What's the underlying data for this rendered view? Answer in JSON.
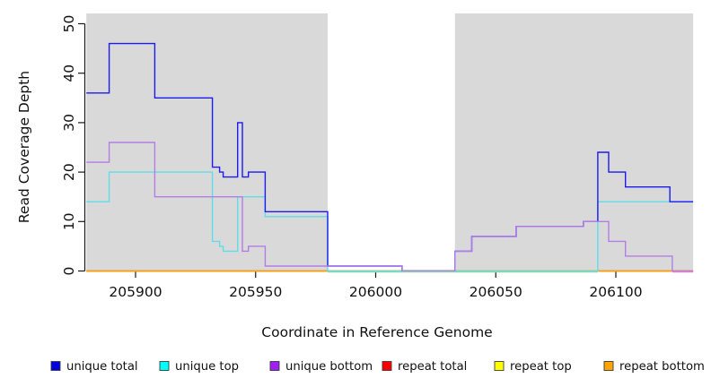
{
  "chart_data": {
    "type": "line",
    "subtype": "step-coverage-plot",
    "title": "",
    "xlabel": "Coordinate in Reference Genome",
    "ylabel": "Read Coverage Depth",
    "xlim": [
      205879.5,
      206132.2
    ],
    "ylim": [
      0,
      51
    ],
    "x_ticks": [
      205900,
      205950,
      206000,
      206050,
      206100
    ],
    "y_ticks": [
      0,
      10,
      20,
      30,
      40,
      50
    ],
    "grid": false,
    "legend_position": "bottom",
    "region_color": "#d9d9d9",
    "shaded_regions": [
      {
        "from": 205879.5,
        "to": 205980,
        "label": "shaded-region-left"
      },
      {
        "from": 206033,
        "to": 206132.2,
        "label": "shaded-region-right"
      }
    ],
    "x_end": 206132.2,
    "series": [
      {
        "name": "unique total",
        "line_color": "#1b1bf2",
        "legend_color": "#0000e0",
        "steps": [
          [
            205879.5,
            36
          ],
          [
            205889,
            46
          ],
          [
            205908,
            35
          ],
          [
            205932,
            21
          ],
          [
            205935,
            20
          ],
          [
            205936.5,
            19
          ],
          [
            205942.5,
            30
          ],
          [
            205944.5,
            19
          ],
          [
            205947,
            20
          ],
          [
            205954,
            12
          ],
          [
            205980,
            1
          ],
          [
            206011,
            0
          ],
          [
            206033,
            4
          ],
          [
            206040,
            7
          ],
          [
            206058.5,
            9
          ],
          [
            206086.5,
            10
          ],
          [
            206092.5,
            24
          ],
          [
            206097,
            20
          ],
          [
            206104,
            17
          ],
          [
            206122.5,
            14
          ]
        ]
      },
      {
        "name": "unique top",
        "line_color": "#5fdde8",
        "legend_color": "#00ffff",
        "steps": [
          [
            205879.5,
            14
          ],
          [
            205889,
            20
          ],
          [
            205932,
            6
          ],
          [
            205935,
            5
          ],
          [
            205936.5,
            4
          ],
          [
            205942.5,
            15
          ],
          [
            205954,
            11
          ],
          [
            205980,
            0
          ],
          [
            206092.5,
            14
          ]
        ]
      },
      {
        "name": "unique bottom",
        "line_color": "#b27ee6",
        "legend_color": "#a020f0",
        "steps": [
          [
            205879.5,
            22
          ],
          [
            205889,
            26
          ],
          [
            205908,
            15
          ],
          [
            205944.5,
            4
          ],
          [
            205947,
            5
          ],
          [
            205954,
            1
          ],
          [
            206011,
            0
          ],
          [
            206033,
            4
          ],
          [
            206040,
            7
          ],
          [
            206058.5,
            9
          ],
          [
            206086.5,
            10
          ],
          [
            206097,
            6
          ],
          [
            206104,
            3
          ],
          [
            206123.5,
            0
          ]
        ]
      },
      {
        "name": "repeat total",
        "line_color": "#e00000",
        "legend_color": "#ff0000",
        "steps": [
          [
            205879.5,
            0
          ]
        ]
      },
      {
        "name": "repeat top",
        "line_color": "#f5e626",
        "legend_color": "#ffff00",
        "steps": [
          [
            205879.5,
            0
          ]
        ]
      },
      {
        "name": "repeat bottom",
        "line_color": "#ff9b0f",
        "legend_color": "#ffa500",
        "steps": [
          [
            205879.5,
            0
          ]
        ]
      }
    ],
    "baseline_blend_segments": [
      {
        "from": 205980,
        "to": 206092.5,
        "color": "#8fd6a2"
      },
      {
        "from": 206123.5,
        "to": 206132.2,
        "color": "#e886ba"
      }
    ],
    "legend": [
      {
        "label": "unique total"
      },
      {
        "label": "unique top"
      },
      {
        "label": "unique bottom"
      },
      {
        "label": "repeat total"
      },
      {
        "label": "repeat top"
      },
      {
        "label": "repeat bottom"
      }
    ]
  }
}
